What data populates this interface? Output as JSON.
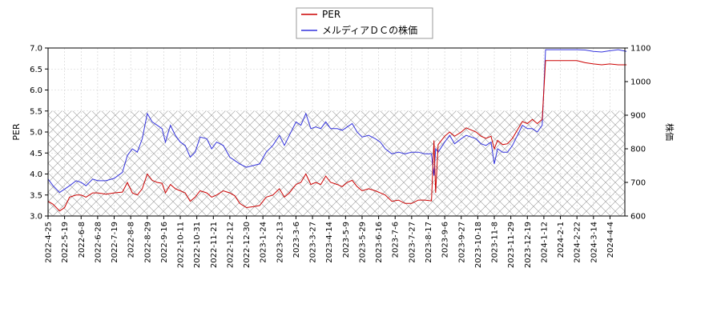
{
  "chart_data": {
    "type": "line",
    "legend": {
      "placement": "top-center",
      "entries": [
        "PER",
        "メルディアＤＣの株価"
      ]
    },
    "y_left": {
      "label": "PER",
      "range": [
        3.0,
        7.0
      ],
      "ticks": [
        "3.0",
        "3.5",
        "4.0",
        "4.5",
        "5.0",
        "5.5",
        "6.0",
        "6.5",
        "7.0"
      ]
    },
    "y_right": {
      "label": "株価",
      "range": [
        600,
        1100
      ],
      "ticks": [
        "600",
        "700",
        "800",
        "900",
        "1000",
        "1100"
      ]
    },
    "x_ticks": [
      "2022-4-25",
      "2022-5-19",
      "2022-6-8",
      "2022-6-28",
      "2022-7-19",
      "2022-8-8",
      "2022-8-29",
      "2022-9-16",
      "2022-10-11",
      "2022-10-31",
      "2022-11-21",
      "2022-12-12",
      "2022-12-30",
      "2023-1-24",
      "2023-2-13",
      "2023-3-6",
      "2023-3-27",
      "2023-4-14",
      "2023-5-9",
      "2023-5-29",
      "2023-6-16",
      "2023-7-6",
      "2023-7-27",
      "2023-8-17",
      "2023-9-6",
      "2023-9-27",
      "2023-10-18",
      "2023-11-8",
      "2023-11-29",
      "2023-12-19",
      "2024-1-12",
      "2024-2-1",
      "2024-2-22",
      "2024-3-14",
      "2024-4-4"
    ],
    "hatch_band": {
      "axis": "left",
      "from": 3.0,
      "to": 5.5
    },
    "grid": true,
    "colors": {
      "per": "#cc0000",
      "price": "#3333dd"
    },
    "series": [
      {
        "name": "PER",
        "axis": "left",
        "points": [
          [
            0,
            3.35
          ],
          [
            0.3,
            3.28
          ],
          [
            0.7,
            3.12
          ],
          [
            1,
            3.2
          ],
          [
            1.3,
            3.45
          ],
          [
            1.7,
            3.5
          ],
          [
            2,
            3.5
          ],
          [
            2.3,
            3.45
          ],
          [
            2.7,
            3.55
          ],
          [
            3,
            3.55
          ],
          [
            3.5,
            3.52
          ],
          [
            4,
            3.55
          ],
          [
            4.5,
            3.57
          ],
          [
            4.8,
            3.8
          ],
          [
            5.1,
            3.55
          ],
          [
            5.4,
            3.5
          ],
          [
            5.7,
            3.65
          ],
          [
            6,
            4.0
          ],
          [
            6.3,
            3.85
          ],
          [
            6.6,
            3.8
          ],
          [
            6.9,
            3.78
          ],
          [
            7.1,
            3.55
          ],
          [
            7.4,
            3.75
          ],
          [
            7.7,
            3.65
          ],
          [
            8,
            3.6
          ],
          [
            8.3,
            3.55
          ],
          [
            8.6,
            3.35
          ],
          [
            8.9,
            3.45
          ],
          [
            9.2,
            3.6
          ],
          [
            9.6,
            3.55
          ],
          [
            9.9,
            3.45
          ],
          [
            10.2,
            3.5
          ],
          [
            10.6,
            3.6
          ],
          [
            11,
            3.55
          ],
          [
            11.3,
            3.48
          ],
          [
            11.6,
            3.3
          ],
          [
            12,
            3.2
          ],
          [
            12.4,
            3.22
          ],
          [
            12.8,
            3.25
          ],
          [
            13.2,
            3.45
          ],
          [
            13.6,
            3.5
          ],
          [
            14,
            3.65
          ],
          [
            14.3,
            3.45
          ],
          [
            14.6,
            3.55
          ],
          [
            15,
            3.75
          ],
          [
            15.3,
            3.8
          ],
          [
            15.6,
            4.0
          ],
          [
            15.9,
            3.75
          ],
          [
            16.2,
            3.8
          ],
          [
            16.5,
            3.75
          ],
          [
            16.8,
            3.95
          ],
          [
            17.1,
            3.8
          ],
          [
            17.5,
            3.75
          ],
          [
            17.8,
            3.7
          ],
          [
            18.1,
            3.8
          ],
          [
            18.4,
            3.85
          ],
          [
            18.7,
            3.7
          ],
          [
            19,
            3.6
          ],
          [
            19.4,
            3.65
          ],
          [
            19.8,
            3.6
          ],
          [
            20.1,
            3.55
          ],
          [
            20.4,
            3.5
          ],
          [
            20.8,
            3.35
          ],
          [
            21.2,
            3.38
          ],
          [
            21.6,
            3.3
          ],
          [
            22,
            3.3
          ],
          [
            22.4,
            3.38
          ],
          [
            22.8,
            3.38
          ],
          [
            23.2,
            3.36
          ],
          [
            23.35,
            4.8
          ],
          [
            23.45,
            3.55
          ],
          [
            23.6,
            4.7
          ],
          [
            24,
            4.9
          ],
          [
            24.3,
            5.0
          ],
          [
            24.6,
            4.9
          ],
          [
            25,
            5.0
          ],
          [
            25.3,
            5.1
          ],
          [
            25.6,
            5.05
          ],
          [
            25.9,
            5.0
          ],
          [
            26.2,
            4.9
          ],
          [
            26.5,
            4.85
          ],
          [
            26.8,
            4.9
          ],
          [
            27,
            4.6
          ],
          [
            27.2,
            4.8
          ],
          [
            27.5,
            4.7
          ],
          [
            27.8,
            4.72
          ],
          [
            28.1,
            4.85
          ],
          [
            28.4,
            5.05
          ],
          [
            28.7,
            5.25
          ],
          [
            29,
            5.2
          ],
          [
            29.3,
            5.3
          ],
          [
            29.6,
            5.2
          ],
          [
            29.9,
            5.3
          ],
          [
            30.1,
            6.7
          ],
          [
            30.5,
            6.7
          ],
          [
            31,
            6.7
          ],
          [
            31.5,
            6.7
          ],
          [
            32,
            6.7
          ],
          [
            32.5,
            6.65
          ],
          [
            33,
            6.62
          ],
          [
            33.5,
            6.6
          ],
          [
            34,
            6.62
          ],
          [
            34.5,
            6.6
          ],
          [
            35,
            6.6
          ]
        ]
      },
      {
        "name": "メルディアＤＣの株価",
        "axis": "right",
        "points": [
          [
            0,
            710
          ],
          [
            0.3,
            690
          ],
          [
            0.7,
            670
          ],
          [
            1,
            680
          ],
          [
            1.3,
            690
          ],
          [
            1.7,
            705
          ],
          [
            2,
            700
          ],
          [
            2.3,
            690
          ],
          [
            2.7,
            710
          ],
          [
            3,
            705
          ],
          [
            3.5,
            705
          ],
          [
            4,
            712
          ],
          [
            4.5,
            730
          ],
          [
            4.8,
            780
          ],
          [
            5.1,
            800
          ],
          [
            5.4,
            790
          ],
          [
            5.7,
            830
          ],
          [
            6,
            905
          ],
          [
            6.3,
            880
          ],
          [
            6.6,
            870
          ],
          [
            6.9,
            860
          ],
          [
            7.1,
            820
          ],
          [
            7.4,
            870
          ],
          [
            7.7,
            840
          ],
          [
            8,
            820
          ],
          [
            8.3,
            810
          ],
          [
            8.6,
            775
          ],
          [
            8.9,
            790
          ],
          [
            9.2,
            835
          ],
          [
            9.6,
            830
          ],
          [
            9.9,
            800
          ],
          [
            10.2,
            820
          ],
          [
            10.6,
            810
          ],
          [
            11,
            775
          ],
          [
            11.3,
            765
          ],
          [
            11.6,
            755
          ],
          [
            12,
            745
          ],
          [
            12.4,
            750
          ],
          [
            12.8,
            755
          ],
          [
            13.2,
            790
          ],
          [
            13.6,
            810
          ],
          [
            14,
            840
          ],
          [
            14.3,
            810
          ],
          [
            14.6,
            840
          ],
          [
            15,
            880
          ],
          [
            15.3,
            870
          ],
          [
            15.6,
            905
          ],
          [
            15.9,
            860
          ],
          [
            16.2,
            865
          ],
          [
            16.5,
            860
          ],
          [
            16.8,
            880
          ],
          [
            17.1,
            860
          ],
          [
            17.5,
            860
          ],
          [
            17.8,
            855
          ],
          [
            18.1,
            865
          ],
          [
            18.4,
            875
          ],
          [
            18.7,
            850
          ],
          [
            19,
            835
          ],
          [
            19.4,
            840
          ],
          [
            19.8,
            830
          ],
          [
            20.1,
            820
          ],
          [
            20.4,
            800
          ],
          [
            20.8,
            785
          ],
          [
            21.2,
            790
          ],
          [
            21.6,
            785
          ],
          [
            22,
            790
          ],
          [
            22.4,
            790
          ],
          [
            22.8,
            785
          ],
          [
            23.2,
            785
          ],
          [
            23.35,
            720
          ],
          [
            23.45,
            800
          ],
          [
            23.6,
            790
          ],
          [
            24,
            820
          ],
          [
            24.3,
            840
          ],
          [
            24.6,
            815
          ],
          [
            25,
            830
          ],
          [
            25.3,
            840
          ],
          [
            25.6,
            835
          ],
          [
            25.9,
            830
          ],
          [
            26.2,
            815
          ],
          [
            26.5,
            810
          ],
          [
            26.8,
            820
          ],
          [
            27,
            755
          ],
          [
            27.2,
            800
          ],
          [
            27.5,
            790
          ],
          [
            27.8,
            790
          ],
          [
            28.1,
            810
          ],
          [
            28.4,
            840
          ],
          [
            28.7,
            870
          ],
          [
            29,
            860
          ],
          [
            29.3,
            860
          ],
          [
            29.6,
            850
          ],
          [
            29.9,
            870
          ],
          [
            30.1,
            1095
          ],
          [
            30.5,
            1095
          ],
          [
            31,
            1095
          ],
          [
            31.5,
            1095
          ],
          [
            32,
            1095
          ],
          [
            32.5,
            1094
          ],
          [
            33,
            1090
          ],
          [
            33.5,
            1088
          ],
          [
            34,
            1092
          ],
          [
            34.5,
            1095
          ],
          [
            35,
            1090
          ]
        ]
      }
    ]
  }
}
